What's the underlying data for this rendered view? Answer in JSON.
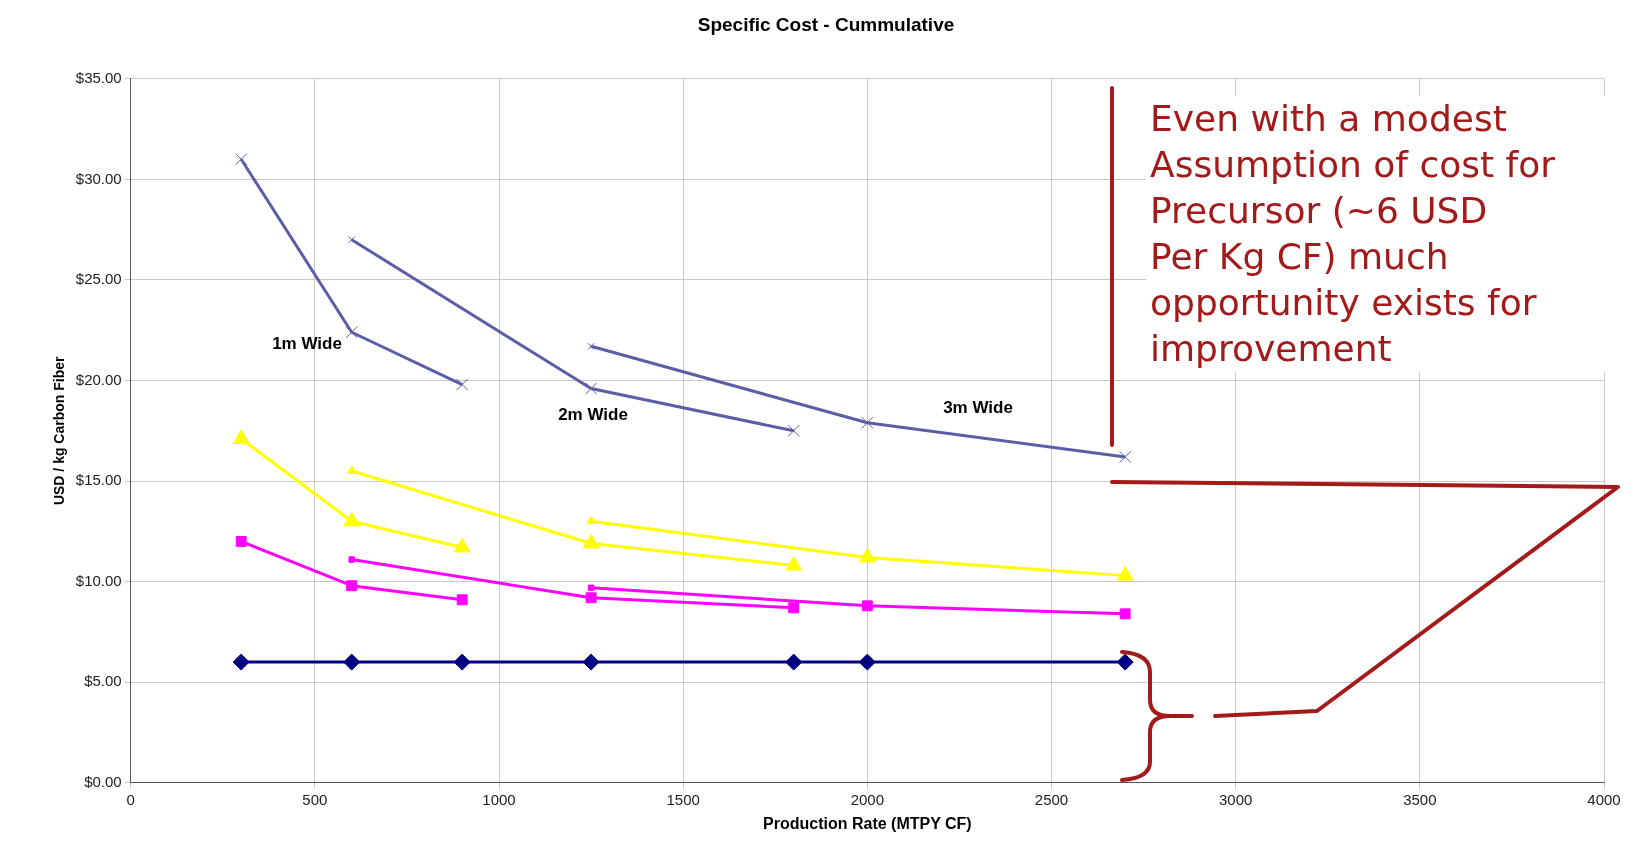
{
  "chart_data": {
    "type": "line",
    "title": "Specific Cost - Cummulative",
    "xlabel": "Production Rate (MTPY CF)",
    "ylabel": "USD / kg Carbon Fiber",
    "xlim": [
      0,
      4000
    ],
    "xticks": [
      0,
      500,
      1000,
      1500,
      2000,
      2500,
      3000,
      3500,
      4000
    ],
    "ylim": [
      0,
      35
    ],
    "yticks": [
      {
        "value": 0,
        "label": "$0.00"
      },
      {
        "value": 5,
        "label": "$5.00"
      },
      {
        "value": 10,
        "label": "$10.00"
      },
      {
        "value": 15,
        "label": "$15.00"
      },
      {
        "value": 20,
        "label": "$20.00"
      },
      {
        "value": 25,
        "label": "$25.00"
      },
      {
        "value": 30,
        "label": "$30.00"
      },
      {
        "value": 35,
        "label": "$35.00"
      }
    ],
    "grid": true,
    "legend": false,
    "line_style": "solid",
    "series": [
      {
        "color": "#5b5ea6",
        "marker": "cross",
        "x": [
          300,
          600,
          900
        ],
        "values": [
          31,
          22.4,
          19.8
        ]
      },
      {
        "color": "#5b5ea6",
        "marker": "cross",
        "x": [
          600,
          1250,
          1800
        ],
        "values": [
          27,
          19.6,
          17.5
        ]
      },
      {
        "color": "#5b5ea6",
        "marker": "cross",
        "x": [
          1250,
          2000,
          2700
        ],
        "values": [
          21.7,
          17.9,
          16.2
        ]
      },
      {
        "color": "#ffff00",
        "marker": "triangle",
        "x": [
          300,
          600,
          900
        ],
        "values": [
          17.1,
          13,
          11.7
        ]
      },
      {
        "color": "#ffff00",
        "marker": "triangle",
        "x": [
          600,
          1250,
          1800
        ],
        "values": [
          15.5,
          11.9,
          10.8
        ]
      },
      {
        "color": "#ffff00",
        "marker": "triangle",
        "x": [
          1250,
          2000,
          2700
        ],
        "values": [
          13,
          11.2,
          10.3
        ]
      },
      {
        "color": "#ff00ff",
        "marker": "square",
        "x": [
          300,
          600,
          900
        ],
        "values": [
          12,
          9.8,
          9.1
        ]
      },
      {
        "color": "#ff00ff",
        "marker": "square",
        "x": [
          600,
          1250,
          1800
        ],
        "values": [
          11.1,
          9.2,
          8.7
        ]
      },
      {
        "color": "#ff00ff",
        "marker": "square",
        "x": [
          1250,
          2000,
          2700
        ],
        "values": [
          9.7,
          8.8,
          8.4
        ]
      },
      {
        "color": "#000080",
        "marker": "diamond",
        "x": [
          300,
          600,
          900,
          1250,
          1800,
          2000,
          2700
        ],
        "values": [
          6,
          6,
          6,
          6,
          6,
          6,
          6
        ]
      }
    ],
    "annotations": [
      "1m Wide",
      "2m Wide",
      "3m Wide",
      "Even with a modest\nAssumption of cost for\nPrecursor (~6 USD\nPer Kg CF) much\nopportunity exists for\nimprovement"
    ]
  }
}
